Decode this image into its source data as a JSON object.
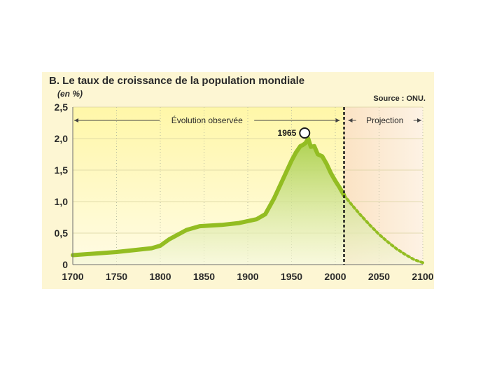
{
  "chart_data": {
    "type": "area",
    "title": "B. Le taux de croissance de la population mondiale",
    "ylabel": "(en %)",
    "source": "Source : ONU.",
    "xlim": [
      1700,
      2100
    ],
    "ylim": [
      0,
      2.5
    ],
    "x_ticks": [
      "1700",
      "1750",
      "1800",
      "1850",
      "1900",
      "1950",
      "2000",
      "2050",
      "2100"
    ],
    "y_ticks": [
      "0",
      "0,5",
      "1,0",
      "1,5",
      "2,0",
      "2,5"
    ],
    "periods": [
      {
        "label": "Évolution observée",
        "from": 1700,
        "to": 2010
      },
      {
        "label": "Projection",
        "from": 2010,
        "to": 2100
      }
    ],
    "annotations": [
      {
        "label": "1965",
        "x": 1965,
        "y": 2.0
      }
    ],
    "grid": "vertical-dotted",
    "colors": {
      "observed_bg": "#fff59a",
      "projection_bg": "#fbe0c0",
      "line": "#9cc62a",
      "fill": "#b9d86a",
      "divider": "#1a1a1a"
    },
    "series": [
      {
        "segment": "observed",
        "x": [
          1700,
          1750,
          1790,
          1800,
          1810,
          1830,
          1845,
          1870,
          1890,
          1910,
          1920,
          1930,
          1940,
          1950,
          1955,
          1960,
          1963,
          1966,
          1969,
          1972,
          1976,
          1980,
          1985,
          1990,
          1995,
          2000,
          2005,
          2010
        ],
        "y": [
          0.15,
          0.2,
          0.26,
          0.3,
          0.4,
          0.55,
          0.61,
          0.63,
          0.66,
          0.72,
          0.8,
          1.05,
          1.35,
          1.65,
          1.78,
          1.88,
          1.9,
          1.93,
          2.0,
          1.87,
          1.88,
          1.75,
          1.72,
          1.6,
          1.45,
          1.33,
          1.22,
          1.1
        ]
      },
      {
        "segment": "projection",
        "x": [
          2010,
          2020,
          2030,
          2040,
          2050,
          2060,
          2070,
          2080,
          2090,
          2100
        ],
        "y": [
          1.1,
          0.93,
          0.77,
          0.62,
          0.48,
          0.36,
          0.25,
          0.16,
          0.08,
          0.03
        ]
      }
    ]
  }
}
